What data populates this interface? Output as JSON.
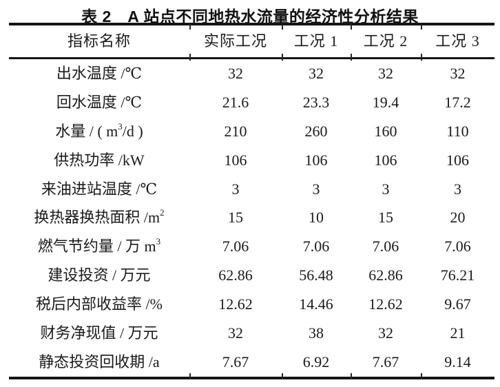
{
  "title": "表 2　A 站点不同地热水流量的经济性分析结果",
  "table": {
    "columns": [
      "指标名称",
      "实际工况",
      "工况 1",
      "工况 2",
      "工况 3"
    ],
    "rows": [
      {
        "label": {
          "pre": "出水温度 /℃",
          "sup": "",
          "post": ""
        },
        "values": [
          "32",
          "32",
          "32",
          "32"
        ]
      },
      {
        "label": {
          "pre": "回水温度 /℃",
          "sup": "",
          "post": ""
        },
        "values": [
          "21.6",
          "23.3",
          "19.4",
          "17.2"
        ]
      },
      {
        "label": {
          "pre": "水量 / ( m",
          "sup": "3",
          "post": "/d )"
        },
        "values": [
          "210",
          "260",
          "160",
          "110"
        ]
      },
      {
        "label": {
          "pre": "供热功率 /kW",
          "sup": "",
          "post": ""
        },
        "values": [
          "106",
          "106",
          "106",
          "106"
        ]
      },
      {
        "label": {
          "pre": "来油进站温度 /℃",
          "sup": "",
          "post": ""
        },
        "values": [
          "3",
          "3",
          "3",
          "3"
        ]
      },
      {
        "label": {
          "pre": "换热器换热面积 /m",
          "sup": "2",
          "post": ""
        },
        "values": [
          "15",
          "10",
          "15",
          "20"
        ]
      },
      {
        "label": {
          "pre": "燃气节约量 / 万 m",
          "sup": "3",
          "post": ""
        },
        "values": [
          "7.06",
          "7.06",
          "7.06",
          "7.06"
        ]
      },
      {
        "label": {
          "pre": "建设投资 / 万元",
          "sup": "",
          "post": ""
        },
        "values": [
          "62.86",
          "56.48",
          "62.86",
          "76.21"
        ]
      },
      {
        "label": {
          "pre": "税后内部收益率 /%",
          "sup": "",
          "post": ""
        },
        "values": [
          "12.62",
          "14.46",
          "12.62",
          "9.67"
        ]
      },
      {
        "label": {
          "pre": "财务净现值 / 万元",
          "sup": "",
          "post": ""
        },
        "values": [
          "32",
          "38",
          "32",
          "21"
        ]
      },
      {
        "label": {
          "pre": "静态投资回收期 /a",
          "sup": "",
          "post": ""
        },
        "values": [
          "7.67",
          "6.92",
          "7.67",
          "9.14"
        ]
      }
    ]
  },
  "chart_data": {
    "type": "table",
    "title": "表 2　A 站点不同地热水流量的经济性分析结果",
    "columns": [
      "指标名称",
      "实际工况",
      "工况 1",
      "工况 2",
      "工况 3"
    ],
    "rows": [
      [
        "出水温度 /℃",
        "32",
        "32",
        "32",
        "32"
      ],
      [
        "回水温度 /℃",
        "21.6",
        "23.3",
        "19.4",
        "17.2"
      ],
      [
        "水量 / ( m³/d )",
        "210",
        "260",
        "160",
        "110"
      ],
      [
        "供热功率 /kW",
        "106",
        "106",
        "106",
        "106"
      ],
      [
        "来油进站温度 /℃",
        "3",
        "3",
        "3",
        "3"
      ],
      [
        "换热器换热面积 /m²",
        "15",
        "10",
        "15",
        "20"
      ],
      [
        "燃气节约量 / 万 m³",
        "7.06",
        "7.06",
        "7.06",
        "7.06"
      ],
      [
        "建设投资 / 万元",
        "62.86",
        "56.48",
        "62.86",
        "76.21"
      ],
      [
        "税后内部收益率 /%",
        "12.62",
        "14.46",
        "12.62",
        "9.67"
      ],
      [
        "财务净现值 / 万元",
        "32",
        "38",
        "32",
        "21"
      ],
      [
        "静态投资回收期 /a",
        "7.67",
        "6.92",
        "7.67",
        "9.14"
      ]
    ]
  }
}
